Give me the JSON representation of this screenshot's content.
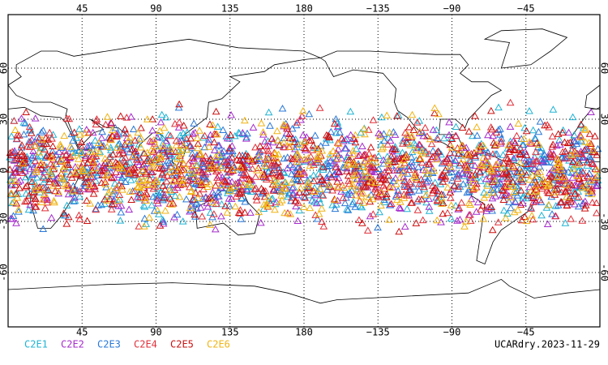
{
  "map": {
    "xlim": [
      0,
      360
    ],
    "ylim": [
      -90,
      90
    ],
    "xticks": [
      45,
      90,
      135,
      180,
      {
        "value": 225,
        "label": "−135"
      },
      {
        "value": 270,
        "label": "−90"
      },
      {
        "value": 315,
        "label": "−45"
      }
    ],
    "yticks": [
      60,
      30,
      0,
      -30,
      -60
    ],
    "grid": true,
    "legend": [
      {
        "name": "C2E1",
        "color": "#20b4d4"
      },
      {
        "name": "C2E2",
        "color": "#a62ccc"
      },
      {
        "name": "C2E3",
        "color": "#2a78d8"
      },
      {
        "name": "C2E4",
        "color": "#e0303a"
      },
      {
        "name": "C2E5",
        "color": "#cc1010"
      },
      {
        "name": "C2E6",
        "color": "#f0b414"
      }
    ],
    "label": "UCARdry.2023-11-29"
  }
}
